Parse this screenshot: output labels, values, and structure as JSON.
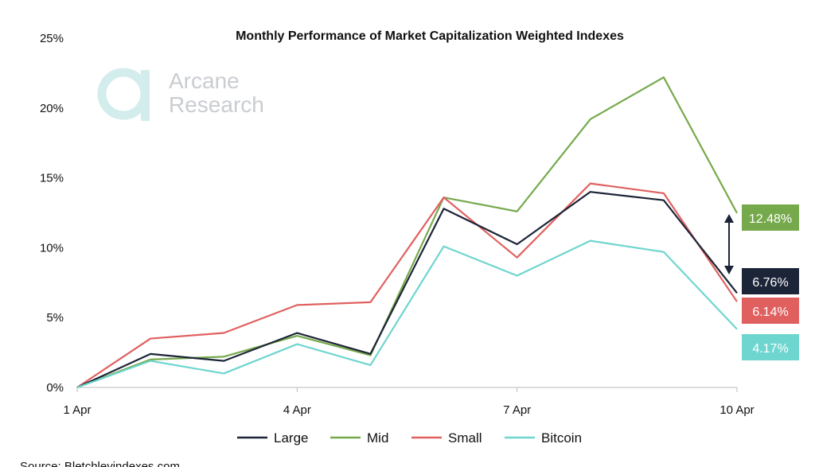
{
  "chart_data": {
    "type": "line",
    "title": "Monthly Performance of Market Capitalization Weighted Indexes",
    "x": [
      "1 Apr",
      "2 Apr",
      "3 Apr",
      "4 Apr",
      "5 Apr",
      "6 Apr",
      "7 Apr",
      "8 Apr",
      "9 Apr",
      "10 Apr"
    ],
    "x_tick_labels": [
      "1 Apr",
      "4 Apr",
      "7 Apr",
      "10 Apr"
    ],
    "y_tick_labels": [
      "0%",
      "5%",
      "10%",
      "15%",
      "20%",
      "25%"
    ],
    "ylim": [
      0,
      25
    ],
    "grid": false,
    "legend_position": "bottom",
    "series": [
      {
        "name": "Large",
        "color": "#1c2437",
        "values": [
          0,
          2.4,
          1.9,
          3.9,
          2.4,
          12.8,
          10.25,
          14.0,
          13.4,
          6.76
        ],
        "end_label": "6.76%"
      },
      {
        "name": "Mid",
        "color": "#76a94c",
        "values": [
          0,
          2.0,
          2.2,
          3.7,
          2.3,
          13.6,
          12.6,
          19.2,
          22.2,
          12.48
        ],
        "end_label": "12.48%"
      },
      {
        "name": "Small",
        "color": "#e0605f",
        "values": [
          0,
          3.5,
          3.9,
          5.9,
          6.1,
          13.6,
          9.3,
          14.6,
          13.9,
          6.14
        ],
        "end_label": "6.14%"
      },
      {
        "name": "Bitcoin",
        "color": "#6fd5cf",
        "values": [
          0,
          1.9,
          1.0,
          3.1,
          1.6,
          10.1,
          8.0,
          10.5,
          9.7,
          4.17
        ],
        "end_label": "4.17%"
      }
    ]
  },
  "watermark": {
    "line1": "Arcane",
    "line2": "Research"
  },
  "source": "Source: Bletchleyindexes.com"
}
